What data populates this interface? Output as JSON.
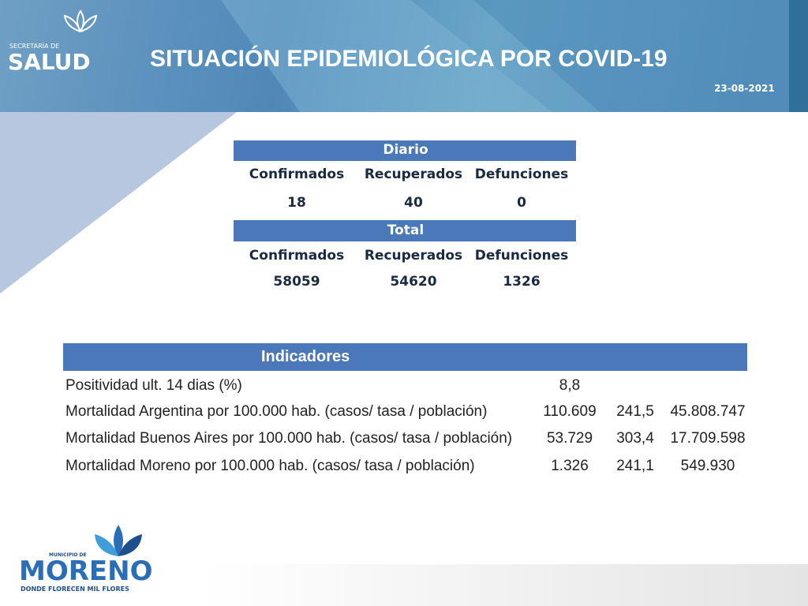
{
  "header": {
    "org_small": "SECRETARÍA DE",
    "org": "SALUD",
    "title": "SITUACIÓN EPIDEMIOLÓGICA POR COVID-19",
    "date": "23-08-2021"
  },
  "daily": {
    "title": "Diario",
    "columns": [
      "Confirmados",
      "Recuperados",
      "Defunciones"
    ],
    "values": [
      "18",
      "40",
      "0"
    ]
  },
  "total": {
    "title": "Total",
    "columns": [
      "Confirmados",
      "Recuperados",
      "Defunciones"
    ],
    "values": [
      "58059",
      "54620",
      "1326"
    ]
  },
  "indicators": {
    "title": "Indicadores",
    "rows": [
      [
        "Positividad ult. 14 dias (%)",
        "8,8"
      ],
      [
        "Mortalidad Argentina por 100.000 hab. (casos/ tasa / población)",
        "110.609",
        "241,5",
        "45.808.747"
      ],
      [
        "Mortalidad Buenos Aires por 100.000 hab. (casos/ tasa / población)",
        "53.729",
        "303,4",
        "17.709.598"
      ],
      [
        "Mortalidad Moreno por 100.000 hab. (casos/ tasa / población)",
        "1.326",
        "241,1",
        "549.930"
      ]
    ]
  },
  "footer": {
    "small": "MUNICIPIO DE",
    "name": "MORENO",
    "slogan": "DONDE FLORECEN MIL FLORES"
  }
}
